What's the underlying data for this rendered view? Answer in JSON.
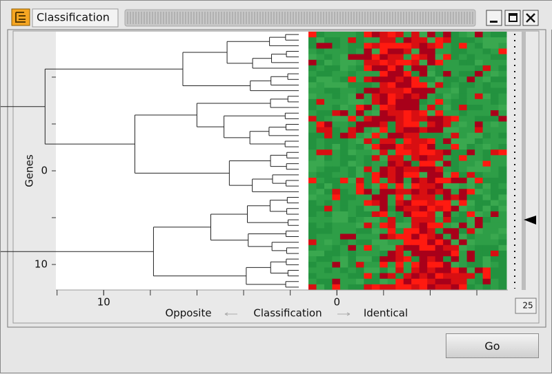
{
  "window": {
    "title": "Classification"
  },
  "plot": {
    "y_label": "Genes",
    "x_label": "Classification",
    "x_left_label": "Opposite",
    "x_right_label": "Identical",
    "xlim": [
      12.05,
      -7.33
    ],
    "xticks": [
      10,
      0
    ],
    "ylim": [
      -14.85,
      12.72
    ],
    "yticks": [
      0,
      10
    ]
  },
  "threshold": 25,
  "button": "Go"
}
